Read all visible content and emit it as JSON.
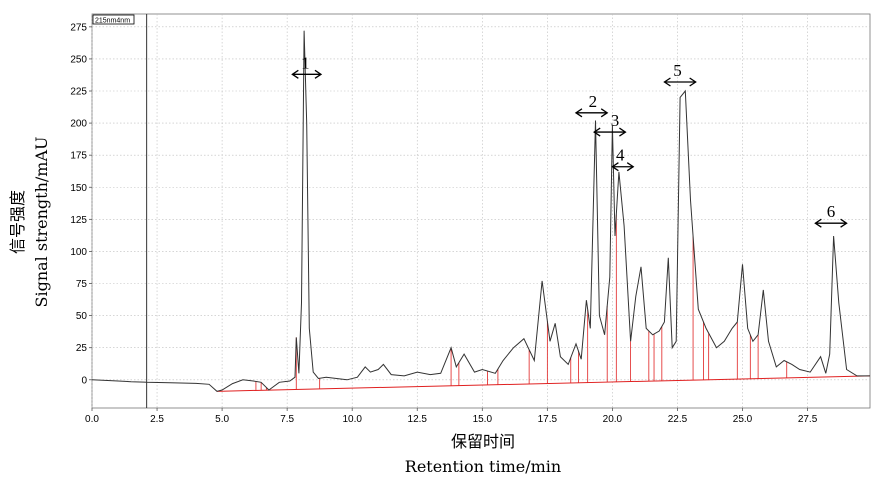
{
  "chart_data": {
    "type": "line",
    "channel_tag": "215nm4nm",
    "xlabel_cn": "保留时间",
    "xlabel_en": "Retention  time/min",
    "ylabel_cn": "信号强度",
    "ylabel_en": "Signal  strength/mAU",
    "xlim": [
      0,
      29.9
    ],
    "ylim": [
      -22,
      285
    ],
    "x_ticks": [
      0,
      2.5,
      5,
      7.5,
      10,
      12.5,
      15,
      17.5,
      20,
      22.5,
      25,
      27.5
    ],
    "x_tick_labels": [
      "0.0",
      "2.5",
      "5.0",
      "7.5",
      "10.0",
      "12.5",
      "15.0",
      "17.5",
      "20.0",
      "22.5",
      "25.0",
      "27.5"
    ],
    "y_ticks": [
      0,
      25,
      50,
      75,
      100,
      125,
      150,
      175,
      200,
      225,
      250,
      275
    ],
    "y_tick_labels": [
      "0",
      "25",
      "50",
      "75",
      "100",
      "125",
      "150",
      "175",
      "200",
      "225",
      "250",
      "275"
    ],
    "grid": true,
    "marker_line_x": 2.1,
    "series": [
      {
        "x": [
          0,
          0.5,
          1.0,
          1.5,
          2.0,
          2.1,
          3.0,
          4.0,
          4.5,
          4.8,
          5.0,
          5.4,
          5.8,
          6.2,
          6.5,
          6.8,
          7.2,
          7.6,
          7.8,
          7.85,
          7.95,
          8.05,
          8.15,
          8.25,
          8.35,
          8.5,
          8.7,
          9.0,
          9.4,
          9.8,
          10.2,
          10.5,
          10.7,
          11.0,
          11.2,
          11.5,
          12.0,
          12.5,
          13.0,
          13.4,
          13.8,
          14.0,
          14.3,
          14.7,
          15.0,
          15.5,
          15.8,
          16.2,
          16.6,
          17.0,
          17.3,
          17.6,
          17.8,
          18.0,
          18.3,
          18.6,
          18.8,
          19.0,
          19.15,
          19.35,
          19.5,
          19.7,
          19.9,
          20.0,
          20.1,
          20.25,
          20.45,
          20.7,
          20.9,
          21.1,
          21.3,
          21.55,
          21.8,
          22.0,
          22.15,
          22.3,
          22.45,
          22.6,
          22.8,
          23.0,
          23.3,
          23.6,
          24.0,
          24.3,
          24.6,
          24.8,
          25.0,
          25.2,
          25.4,
          25.6,
          25.8,
          26.0,
          26.3,
          26.6,
          26.9,
          27.2,
          27.6,
          28.0,
          28.2,
          28.35,
          28.5,
          28.7,
          29.0,
          29.4,
          29.9
        ],
        "y": [
          0,
          -0.5,
          -1.0,
          -1.5,
          -1.8,
          -2,
          -2.3,
          -2.8,
          -3.5,
          -9,
          -8,
          -3,
          0,
          -1,
          -2,
          -8,
          -2,
          -1,
          2,
          33,
          5,
          60,
          272,
          200,
          40,
          6,
          1,
          2,
          1,
          0,
          2,
          10,
          6,
          8,
          12,
          4,
          3,
          6,
          4,
          5,
          25,
          10,
          20,
          6,
          8,
          5,
          15,
          25,
          32,
          15,
          77,
          30,
          44,
          18,
          12,
          28,
          16,
          62,
          40,
          202,
          50,
          35,
          80,
          198,
          112,
          162,
          120,
          30,
          65,
          88,
          40,
          35,
          38,
          45,
          95,
          25,
          30,
          220,
          225,
          140,
          55,
          40,
          25,
          30,
          40,
          45,
          90,
          40,
          30,
          35,
          70,
          30,
          10,
          15,
          12,
          8,
          6,
          18,
          5,
          20,
          112,
          60,
          8,
          3,
          3
        ]
      }
    ],
    "annotations": [
      {
        "label": "1",
        "x": 8.2,
        "y": 238,
        "span": [
          7.7,
          8.8
        ]
      },
      {
        "label": "2",
        "x": 19.25,
        "y": 208,
        "span": [
          18.6,
          19.8
        ]
      },
      {
        "label": "3",
        "x": 20.1,
        "y": 193,
        "span": [
          19.3,
          20.5
        ]
      },
      {
        "label": "4",
        "x": 20.3,
        "y": 166,
        "span": [
          20.0,
          20.8
        ]
      },
      {
        "label": "5",
        "x": 22.5,
        "y": 232,
        "span": [
          22.0,
          23.2
        ]
      },
      {
        "label": "6",
        "x": 28.4,
        "y": 122,
        "span": [
          27.8,
          29.0
        ]
      }
    ],
    "colors": {
      "signal": "#333333",
      "integration": "#e02020",
      "grid": "#bdbdbd",
      "marker": "#333333"
    }
  }
}
